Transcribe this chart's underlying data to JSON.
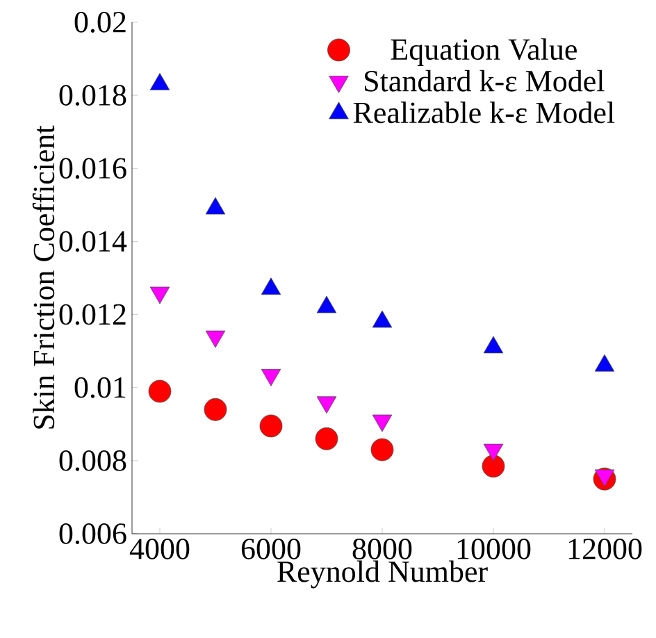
{
  "chart_data": {
    "type": "scatter",
    "xlabel": "Reynold Number",
    "ylabel": "Skin Friction Coefficient",
    "x": [
      4000,
      5000,
      6000,
      7000,
      8000,
      10000,
      12000
    ],
    "series": [
      {
        "name": "Equation Value",
        "color": "#ff0000",
        "marker": "circle",
        "values": [
          0.0099,
          0.0094,
          0.00895,
          0.0086,
          0.0083,
          0.00785,
          0.0075
        ]
      },
      {
        "name": "Standard k-ε Model",
        "color": "#ff00ff",
        "marker": "triangle-down",
        "values": [
          0.0126,
          0.0114,
          0.01035,
          0.0096,
          0.0091,
          0.0083,
          0.0076
        ]
      },
      {
        "name": "Realizable k-ε Model",
        "color": "#0000ff",
        "marker": "triangle",
        "values": [
          0.0183,
          0.0149,
          0.0127,
          0.0122,
          0.0118,
          0.0111,
          0.0106
        ]
      }
    ],
    "xlim": [
      3500,
      12500
    ],
    "xticks": [
      4000,
      6000,
      8000,
      10000,
      12000
    ],
    "ylim": [
      0.006,
      0.02
    ],
    "yticks": [
      0.006,
      0.008,
      0.01,
      0.012,
      0.014,
      0.016,
      0.018,
      0.02
    ],
    "grid": false,
    "legend": "top right"
  }
}
